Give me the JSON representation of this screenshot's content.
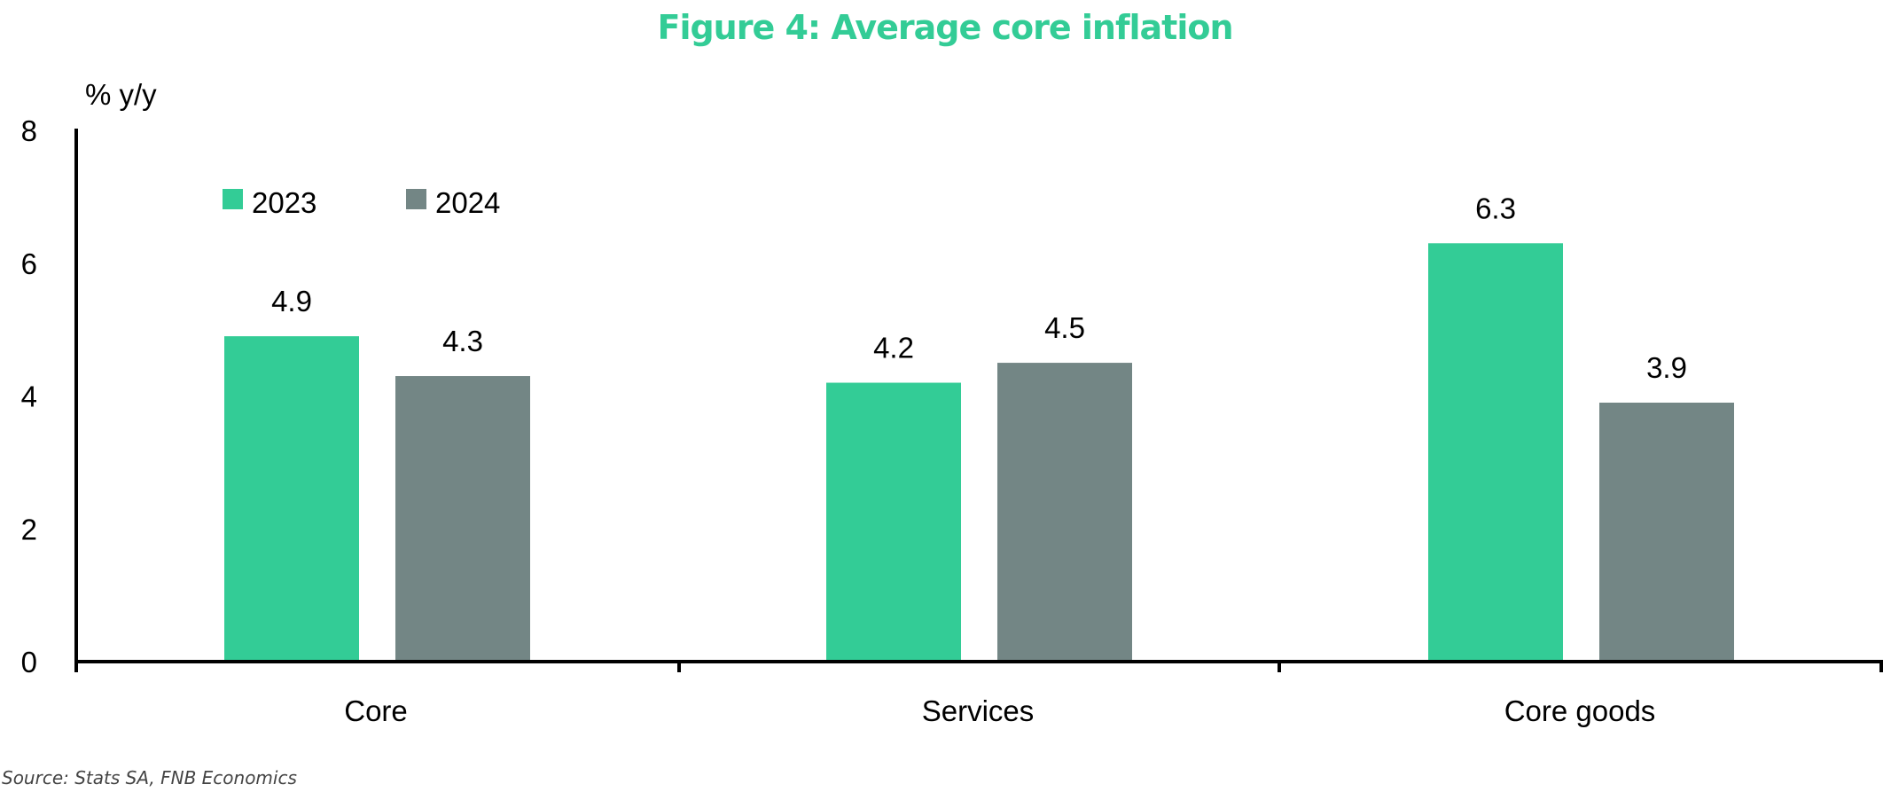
{
  "colors": {
    "accent": "#33CC96",
    "series_2023": "#33CC96",
    "series_2024": "#738685",
    "axis": "#000000",
    "text": "#000000",
    "source": "#444444"
  },
  "chart_data": {
    "type": "bar",
    "title": "Figure 4: Average core inflation",
    "ylabel": "% y/y",
    "xlabel": "",
    "categories": [
      "Core",
      "Services",
      "Core goods"
    ],
    "series": [
      {
        "name": "2023",
        "values": [
          4.9,
          4.2,
          6.3
        ],
        "color": "#33CC96"
      },
      {
        "name": "2024",
        "values": [
          4.3,
          4.5,
          3.9
        ],
        "color": "#738685"
      }
    ],
    "data_labels": [
      [
        "4.9",
        "4.2",
        "6.3"
      ],
      [
        "4.3",
        "4.5",
        "3.9"
      ]
    ],
    "ylim": [
      0,
      8
    ],
    "yticks": [
      0,
      2,
      4,
      6,
      8
    ],
    "grid": false,
    "legend_position": "top-left"
  },
  "source": "Source: Stats SA, FNB Economics"
}
